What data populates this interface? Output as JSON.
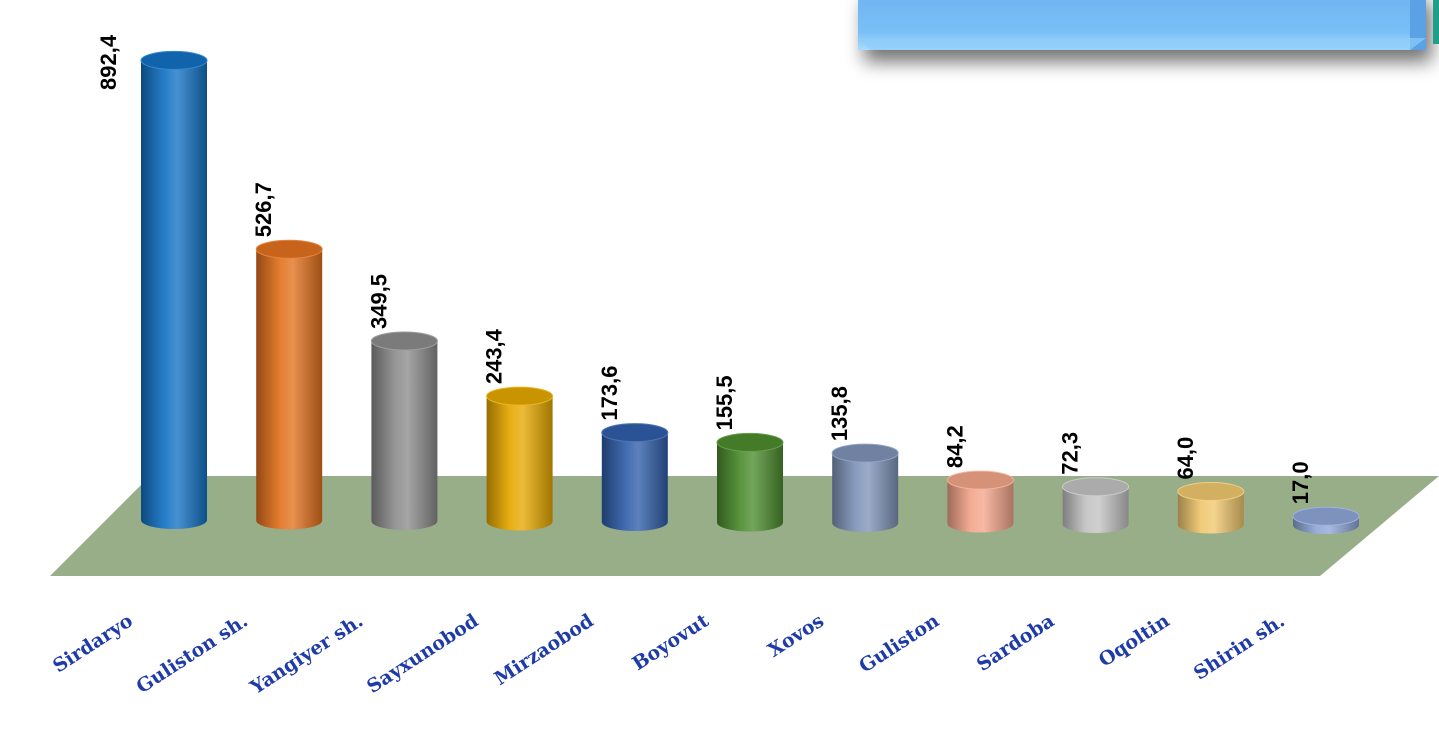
{
  "chart_data": {
    "type": "bar",
    "categories": [
      "Sirdaryo",
      "Guliston sh.",
      "Yangiyer sh.",
      "Sayxunobod",
      "Mirzaobod",
      "Boyovut",
      "Xovos",
      "Guliston",
      "Sardoba",
      "Oqoltin",
      "Shirin sh."
    ],
    "series": [
      {
        "values": [
          892.4,
          526.7,
          349.5,
          243.4,
          173.6,
          155.5,
          135.8,
          84.2,
          72.3,
          64.0,
          17.0
        ],
        "labels": [
          "892,4",
          "526,7",
          "349,5",
          "243,4",
          "173,6",
          "155,5",
          "135,8",
          "84,2",
          "72,3",
          "64,0",
          "17,0"
        ]
      }
    ],
    "bar_colors": [
      "#1372C4",
      "#E2711D",
      "#8C8C8C",
      "#E6A800",
      "#2F5EA8",
      "#4C8C2E",
      "#7F93B8",
      "#F3A58A",
      "#C2C2C2",
      "#F0C76E",
      "#8EA6D6"
    ],
    "floor_color": "#98AE89",
    "label_color": "#1F3BA8",
    "xlabel": "",
    "ylabel": "",
    "ylim": [
      0,
      900
    ],
    "grid": false,
    "legend": "none",
    "style": "3d-cylinder"
  }
}
